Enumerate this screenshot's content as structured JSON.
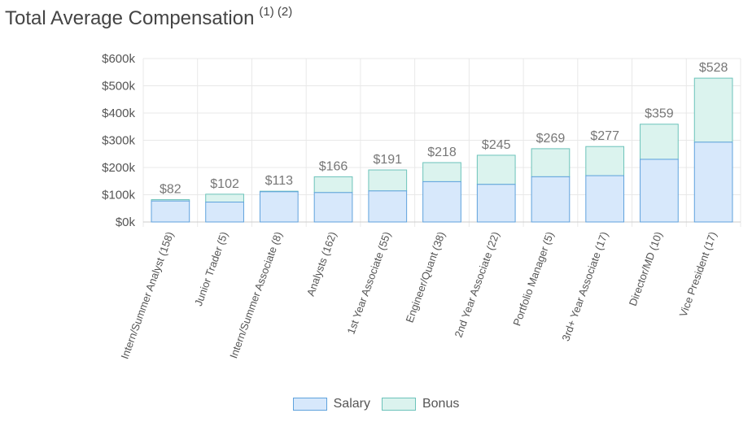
{
  "header": {
    "title": "Total Average Compensation",
    "footnotes": "(1) (2)"
  },
  "colors": {
    "salary_fill": "#d7e8fb",
    "salary_border": "#5fa2dd",
    "bonus_fill": "#dbf3ee",
    "bonus_border": "#6cc3ba",
    "grid": "#e8e8e8"
  },
  "chart_data": {
    "type": "bar",
    "stacked": true,
    "categories": [
      "Intern/Summer Analyst (158)",
      "Junior Trader (5)",
      "Intern/Summer Associate (8)",
      "Analysts (162)",
      "1st Year Associate (55)",
      "Engineer/Quant (38)",
      "2nd Year Associate (22)",
      "Portfolio Manager (5)",
      "3rd+ Year Associate (17)",
      "Director/MD (10)",
      "Vice President (17)"
    ],
    "series": [
      {
        "name": "Salary",
        "values": [
          77,
          73,
          111,
          108,
          114,
          148,
          138,
          166,
          170,
          230,
          293
        ]
      },
      {
        "name": "Bonus",
        "values": [
          5,
          29,
          2,
          58,
          77,
          70,
          107,
          103,
          107,
          129,
          235
        ]
      }
    ],
    "total_labels": [
      "$82",
      "$102",
      "$113",
      "$166",
      "$191",
      "$218",
      "$245",
      "$269",
      "$277",
      "$359",
      "$528"
    ],
    "y_ticks": [
      "$0k",
      "$100k",
      "$200k",
      "$300k",
      "$400k",
      "$500k",
      "$600k"
    ],
    "ylim": [
      0,
      600
    ],
    "grid": true,
    "legend_position": "bottom-center"
  }
}
